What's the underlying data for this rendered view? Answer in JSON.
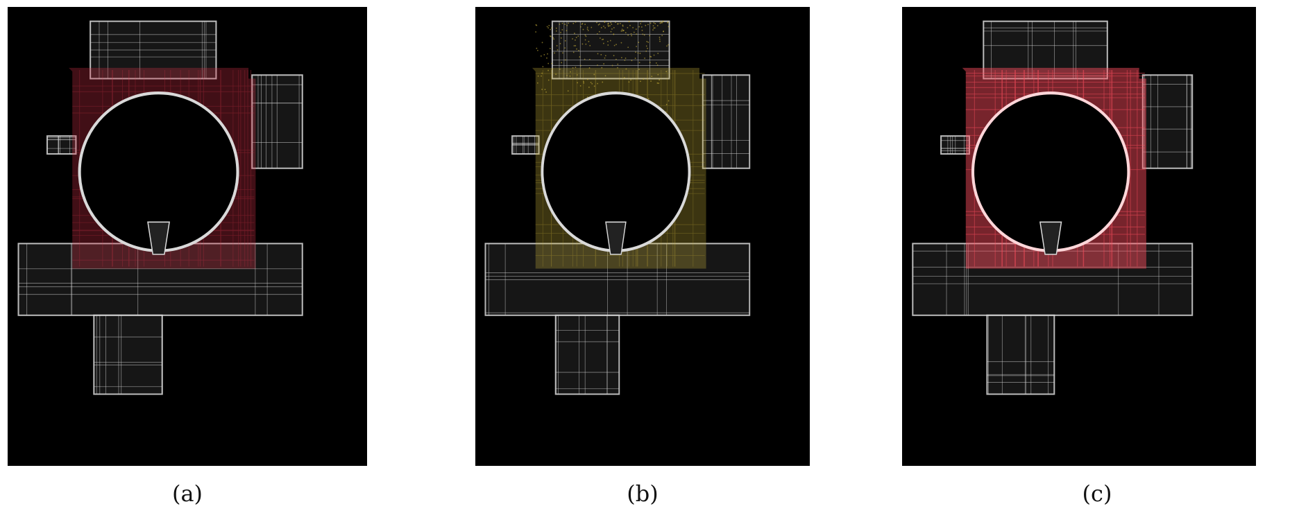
{
  "figure": {
    "panels": [
      {
        "id": "a",
        "caption": "(a)",
        "overlay_color": "#d8344a",
        "overlay_opacity": 0.55,
        "scatter": false,
        "bright": false
      },
      {
        "id": "b",
        "caption": "(b)",
        "overlay_color": "#c9b03a",
        "overlay_opacity": 0.55,
        "scatter": true,
        "bright": false
      },
      {
        "id": "c",
        "caption": "(c)",
        "overlay_color": "#ff4f5f",
        "overlay_opacity": 0.85,
        "scatter": false,
        "bright": true
      }
    ],
    "background_color": "#000000",
    "wall_color": "#d9d9d9"
  }
}
